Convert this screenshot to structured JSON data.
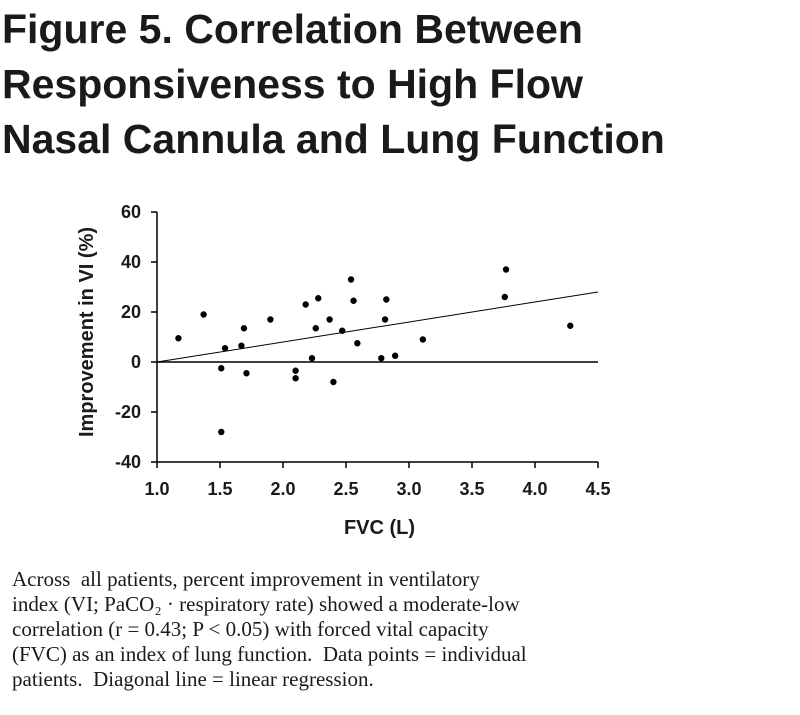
{
  "title_lines": [
    "Figure 5.  Correlation Between",
    "Responsiveness to High Flow",
    "Nasal Cannula and Lung Function"
  ],
  "caption_lines": [
    "Across  all patients, percent improvement in ventilatory",
    "index (VI; PaCO₂ · respiratory rate) showed a moderate-low",
    "correlation (r = 0.43; P < 0.05) with forced vital capacity",
    "(FVC) as an index of lung function.  Data points = individual",
    "patients.  Diagonal line = linear regression."
  ],
  "chart_data": {
    "type": "scatter",
    "title": "",
    "xlabel": "FVC (L)",
    "ylabel": "Improvement in VI (%)",
    "xlim": [
      1.0,
      4.5
    ],
    "ylim": [
      -40,
      60
    ],
    "xticks": [
      "1.0",
      "1.5",
      "2.0",
      "2.5",
      "3.0",
      "3.5",
      "4.0",
      "4.5"
    ],
    "yticks": [
      "60",
      "40",
      "20",
      "0",
      "-20",
      "-40"
    ],
    "xtick_values": [
      1.0,
      1.5,
      2.0,
      2.5,
      3.0,
      3.5,
      4.0,
      4.5
    ],
    "ytick_values": [
      60,
      40,
      20,
      0,
      -20,
      -40
    ],
    "zero_line": 0,
    "grid": false,
    "legend": "none",
    "point_color": "#000000",
    "points": [
      {
        "x": 1.17,
        "y": 9.5
      },
      {
        "x": 1.37,
        "y": 19
      },
      {
        "x": 1.51,
        "y": -2.5
      },
      {
        "x": 1.51,
        "y": -28
      },
      {
        "x": 1.54,
        "y": 5.5
      },
      {
        "x": 1.67,
        "y": 6.5
      },
      {
        "x": 1.69,
        "y": 13.5
      },
      {
        "x": 1.71,
        "y": -4.5
      },
      {
        "x": 1.9,
        "y": 17
      },
      {
        "x": 2.1,
        "y": -3.5
      },
      {
        "x": 2.1,
        "y": -6.5
      },
      {
        "x": 2.18,
        "y": 23
      },
      {
        "x": 2.23,
        "y": 1.5
      },
      {
        "x": 2.26,
        "y": 13.5
      },
      {
        "x": 2.28,
        "y": 25.5
      },
      {
        "x": 2.37,
        "y": 17
      },
      {
        "x": 2.4,
        "y": -8
      },
      {
        "x": 2.47,
        "y": 12.5
      },
      {
        "x": 2.54,
        "y": 33
      },
      {
        "x": 2.56,
        "y": 24.5
      },
      {
        "x": 2.59,
        "y": 7.5
      },
      {
        "x": 2.78,
        "y": 1.5
      },
      {
        "x": 2.81,
        "y": 17
      },
      {
        "x": 2.82,
        "y": 25
      },
      {
        "x": 2.89,
        "y": 2.5
      },
      {
        "x": 3.11,
        "y": 9
      },
      {
        "x": 3.76,
        "y": 26
      },
      {
        "x": 3.77,
        "y": 37
      },
      {
        "x": 4.28,
        "y": 14.5
      }
    ],
    "regression": {
      "x": [
        1.0,
        4.5
      ],
      "y": [
        0,
        28
      ]
    }
  }
}
